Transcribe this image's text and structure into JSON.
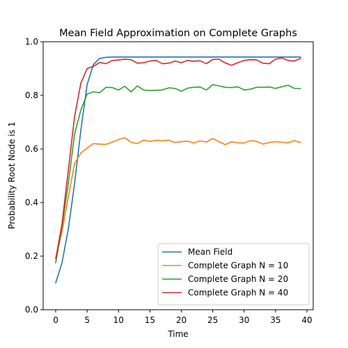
{
  "chart_data": {
    "type": "line",
    "title": "Mean Field Approximation on Complete Graphs",
    "xlabel": "Time",
    "ylabel": "Probability Root Node is 1",
    "xlim": [
      -2,
      41
    ],
    "ylim": [
      0.0,
      1.0
    ],
    "xticks": [
      0,
      5,
      10,
      15,
      20,
      25,
      30,
      35,
      40
    ],
    "yticks": [
      0.0,
      0.2,
      0.4,
      0.6,
      0.8,
      1.0
    ],
    "xtick_labels": [
      "0",
      "5",
      "10",
      "15",
      "20",
      "25",
      "30",
      "35",
      "40"
    ],
    "ytick_labels": [
      "0.0",
      "0.2",
      "0.4",
      "0.6",
      "0.8",
      "1.0"
    ],
    "grid": false,
    "legend_position": "lower-right",
    "x": [
      0,
      1,
      2,
      3,
      4,
      5,
      6,
      7,
      8,
      9,
      10,
      11,
      12,
      13,
      14,
      15,
      16,
      17,
      18,
      19,
      20,
      21,
      22,
      23,
      24,
      25,
      26,
      27,
      28,
      29,
      30,
      31,
      32,
      33,
      34,
      35,
      36,
      37,
      38,
      39
    ],
    "series": [
      {
        "name": "Mean Field",
        "color": "#1f77b4",
        "values": [
          0.1,
          0.175,
          0.3,
          0.47,
          0.67,
          0.84,
          0.915,
          0.938,
          0.942,
          0.943,
          0.943,
          0.943,
          0.943,
          0.943,
          0.943,
          0.943,
          0.943,
          0.943,
          0.943,
          0.943,
          0.943,
          0.943,
          0.943,
          0.943,
          0.943,
          0.943,
          0.943,
          0.943,
          0.943,
          0.943,
          0.943,
          0.943,
          0.943,
          0.943,
          0.943,
          0.943,
          0.943,
          0.943,
          0.943,
          0.943
        ]
      },
      {
        "name": "Complete Graph N = 10",
        "color": "#ff7f0e",
        "values": [
          0.19,
          0.29,
          0.42,
          0.545,
          0.585,
          0.603,
          0.62,
          0.618,
          0.617,
          0.625,
          0.635,
          0.642,
          0.625,
          0.62,
          0.633,
          0.628,
          0.632,
          0.63,
          0.633,
          0.624,
          0.627,
          0.629,
          0.622,
          0.63,
          0.626,
          0.639,
          0.627,
          0.616,
          0.627,
          0.623,
          0.622,
          0.631,
          0.628,
          0.618,
          0.624,
          0.627,
          0.625,
          0.623,
          0.631,
          0.624
        ]
      },
      {
        "name": "Complete Graph N = 20",
        "color": "#2ca02c",
        "values": [
          0.175,
          0.31,
          0.47,
          0.655,
          0.745,
          0.805,
          0.813,
          0.81,
          0.83,
          0.829,
          0.82,
          0.834,
          0.813,
          0.835,
          0.82,
          0.818,
          0.819,
          0.82,
          0.828,
          0.826,
          0.815,
          0.827,
          0.83,
          0.831,
          0.82,
          0.84,
          0.835,
          0.83,
          0.829,
          0.832,
          0.82,
          0.823,
          0.83,
          0.83,
          0.831,
          0.826,
          0.832,
          0.838,
          0.826,
          0.825
        ]
      },
      {
        "name": "Complete Graph N = 40",
        "color": "#d62728",
        "values": [
          0.19,
          0.32,
          0.52,
          0.72,
          0.845,
          0.9,
          0.908,
          0.923,
          0.918,
          0.93,
          0.932,
          0.935,
          0.933,
          0.92,
          0.922,
          0.928,
          0.93,
          0.918,
          0.92,
          0.928,
          0.922,
          0.93,
          0.927,
          0.929,
          0.918,
          0.934,
          0.935,
          0.921,
          0.912,
          0.922,
          0.93,
          0.933,
          0.932,
          0.92,
          0.918,
          0.935,
          0.94,
          0.93,
          0.928,
          0.938
        ]
      }
    ]
  }
}
